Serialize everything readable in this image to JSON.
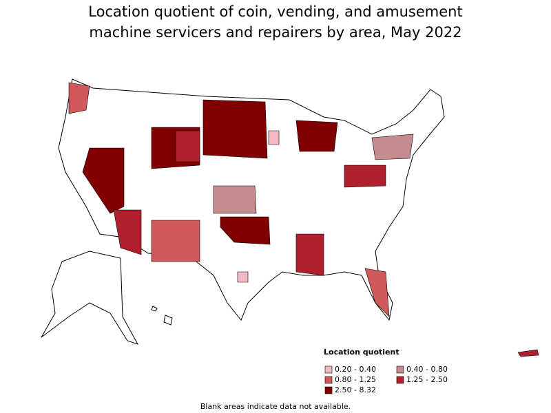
{
  "title": "Location quotient of coin, vending, and amusement machine servicers and repairers by area, May 2022",
  "legend": {
    "title": "Location quotient",
    "items": [
      {
        "label": "0.20 - 0.40",
        "color": "#f4b9c2"
      },
      {
        "label": "0.40 - 0.80",
        "color": "#c48c8c"
      },
      {
        "label": "0.80 - 1.25",
        "color": "#d05a5a"
      },
      {
        "label": "1.25 - 2.50",
        "color": "#b0202c"
      },
      {
        "label": "2.50 - 8.32",
        "color": "#800000"
      }
    ]
  },
  "note": "Blank areas indicate data not available."
}
